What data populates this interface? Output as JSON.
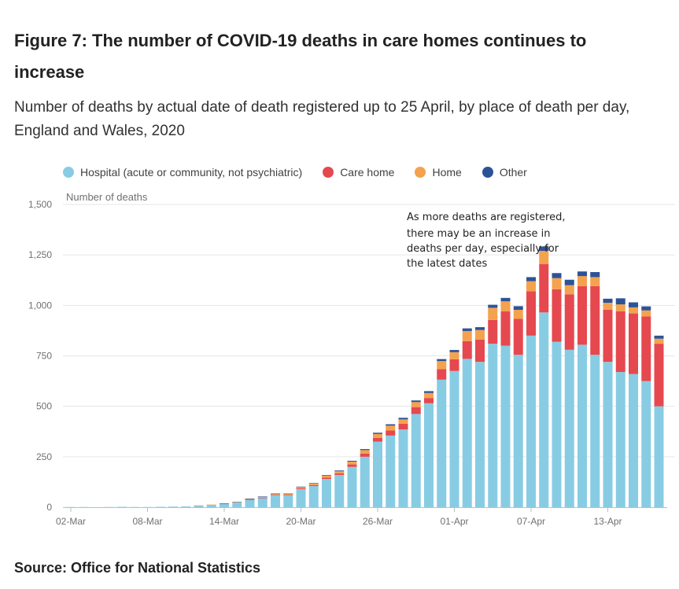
{
  "figure": {
    "title": "Figure 7: The number of COVID-19 deaths in care homes continues to increase",
    "subtitle": "Number of deaths by actual date of death registered up to 25 April, by place of death per day, England and Wales, 2020",
    "source": "Source: Office for National Statistics"
  },
  "chart_data": {
    "type": "bar",
    "stacked": true,
    "ylabel": "Number of deaths",
    "ylim": [
      0,
      1500
    ],
    "yticks": [
      0,
      250,
      500,
      750,
      1000,
      1250,
      1500
    ],
    "ytick_labels": [
      "0",
      "250",
      "500",
      "750",
      "1,000",
      "1,250",
      "1,500"
    ],
    "categories": [
      "02-Mar",
      "03-Mar",
      "04-Mar",
      "05-Mar",
      "06-Mar",
      "07-Mar",
      "08-Mar",
      "09-Mar",
      "10-Mar",
      "11-Mar",
      "12-Mar",
      "13-Mar",
      "14-Mar",
      "15-Mar",
      "16-Mar",
      "17-Mar",
      "18-Mar",
      "19-Mar",
      "20-Mar",
      "21-Mar",
      "22-Mar",
      "23-Mar",
      "24-Mar",
      "25-Mar",
      "26-Mar",
      "27-Mar",
      "28-Mar",
      "29-Mar",
      "30-Mar",
      "31-Mar",
      "01-Apr",
      "02-Apr",
      "03-Apr",
      "04-Apr",
      "05-Apr",
      "06-Apr",
      "07-Apr",
      "08-Apr",
      "09-Apr",
      "10-Apr",
      "11-Apr",
      "12-Apr",
      "13-Apr",
      "14-Apr",
      "15-Apr",
      "16-Apr",
      "17-Apr"
    ],
    "xtick_labels": [
      "02-Mar",
      "08-Mar",
      "14-Mar",
      "20-Mar",
      "26-Mar",
      "01-Apr",
      "07-Apr",
      "13-Apr"
    ],
    "series": [
      {
        "name": "Hospital (acute or community, not psychiatric)",
        "color": "#88CCE4",
        "values": [
          1,
          1,
          0,
          1,
          2,
          1,
          1,
          2,
          3,
          4,
          8,
          12,
          16,
          22,
          38,
          46,
          60,
          58,
          90,
          105,
          140,
          160,
          200,
          250,
          325,
          355,
          385,
          462,
          515,
          632,
          675,
          735,
          720,
          810,
          800,
          755,
          850,
          965,
          820,
          780,
          805,
          755,
          720,
          670,
          660,
          625,
          500
        ]
      },
      {
        "name": "Care home",
        "color": "#E6484F",
        "values": [
          0,
          0,
          0,
          0,
          0,
          0,
          0,
          0,
          0,
          0,
          0,
          0,
          0,
          0,
          1,
          1,
          2,
          3,
          4,
          5,
          6,
          8,
          12,
          15,
          18,
          25,
          28,
          34,
          26,
          52,
          58,
          88,
          110,
          118,
          170,
          178,
          220,
          240,
          260,
          275,
          290,
          340,
          258,
          300,
          300,
          320,
          310
        ]
      },
      {
        "name": "Home",
        "color": "#F4A24D",
        "values": [
          0,
          0,
          0,
          0,
          0,
          0,
          0,
          0,
          0,
          0,
          1,
          1,
          2,
          3,
          3,
          5,
          5,
          5,
          6,
          8,
          10,
          10,
          14,
          18,
          20,
          24,
          22,
          25,
          25,
          40,
          35,
          50,
          48,
          60,
          50,
          45,
          50,
          65,
          55,
          45,
          50,
          45,
          35,
          35,
          30,
          30,
          25
        ]
      },
      {
        "name": "Other",
        "color": "#2D5397",
        "values": [
          0,
          0,
          0,
          0,
          0,
          0,
          0,
          0,
          0,
          0,
          0,
          0,
          1,
          1,
          1,
          1,
          1,
          2,
          2,
          2,
          3,
          4,
          4,
          5,
          6,
          7,
          8,
          8,
          9,
          10,
          11,
          13,
          14,
          15,
          17,
          18,
          20,
          22,
          25,
          27,
          23,
          25,
          20,
          30,
          25,
          20,
          15
        ]
      }
    ],
    "annotation": {
      "lines": [
        "As more deaths are registered,",
        "there may be an increase in",
        "deaths per day, especially for",
        "the latest dates"
      ],
      "anchor_category": "08-Apr"
    },
    "legend_position": "top",
    "grid": true
  }
}
